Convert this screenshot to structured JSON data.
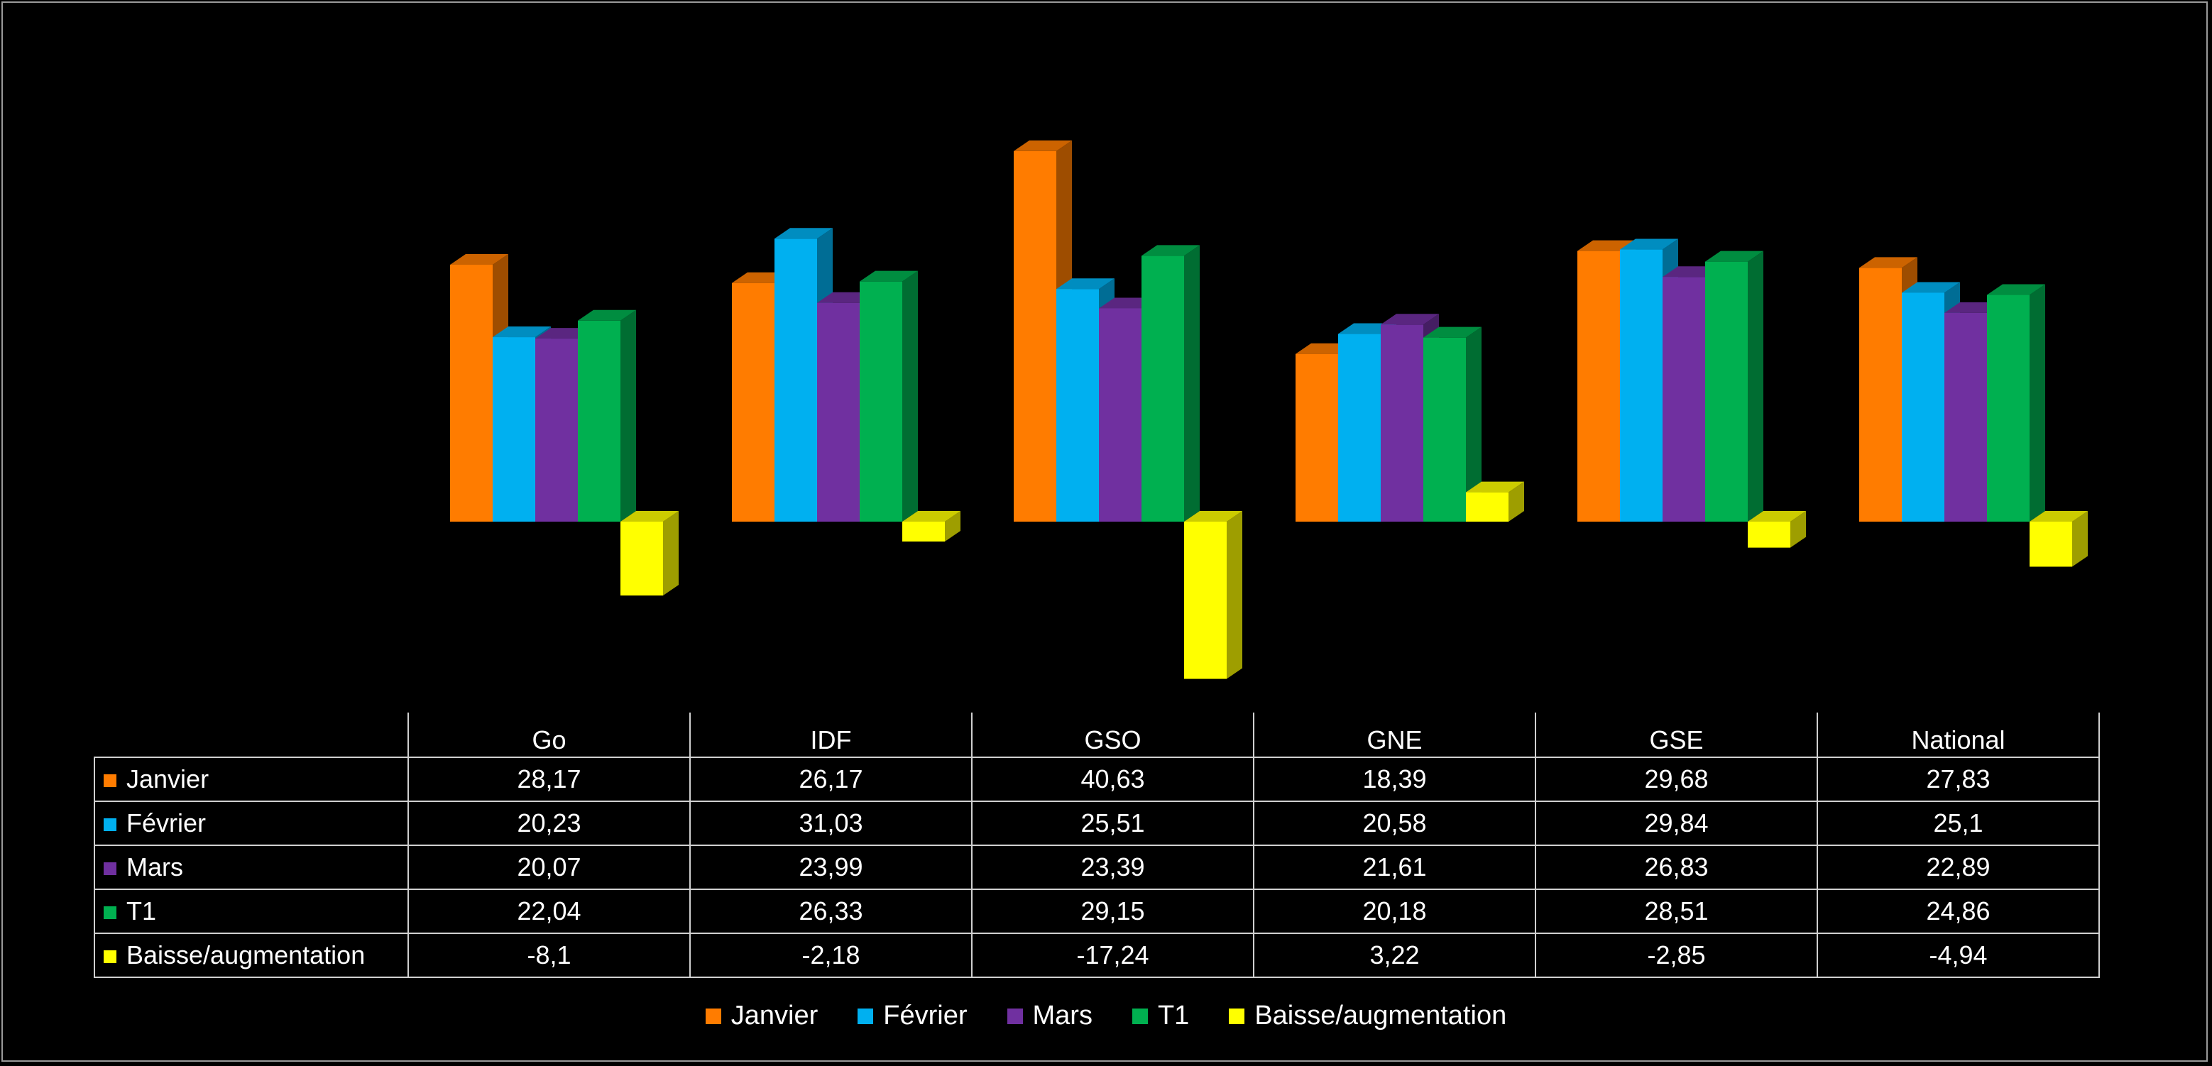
{
  "chart_data": {
    "type": "bar",
    "title": "",
    "xlabel": "",
    "ylabel": "",
    "categories": [
      "Go",
      "IDF",
      "GSO",
      "GNE",
      "GSE",
      "National"
    ],
    "series": [
      {
        "name": "Janvier",
        "color": "#FF7C00",
        "values": [
          28.17,
          26.17,
          40.63,
          18.39,
          29.68,
          27.83
        ],
        "labels": [
          "28,17",
          "26,17",
          "40,63",
          "18,39",
          "29,68",
          "27,83"
        ]
      },
      {
        "name": "Février",
        "color": "#00B0F0",
        "values": [
          20.23,
          31.03,
          25.51,
          20.58,
          29.84,
          25.1
        ],
        "labels": [
          "20,23",
          "31,03",
          "25,51",
          "20,58",
          "29,84",
          "25,1"
        ]
      },
      {
        "name": "Mars",
        "color": "#7030A0",
        "values": [
          20.07,
          23.99,
          23.39,
          21.61,
          26.83,
          22.89
        ],
        "labels": [
          "20,07",
          "23,99",
          "23,39",
          "21,61",
          "26,83",
          "22,89"
        ]
      },
      {
        "name": "T1",
        "color": "#00B050",
        "values": [
          22.04,
          26.33,
          29.15,
          20.18,
          28.51,
          24.86
        ],
        "labels": [
          "22,04",
          "26,33",
          "29,15",
          "20,18",
          "28,51",
          "24,86"
        ]
      },
      {
        "name": "Baisse/augmentation",
        "color": "#FFFF00",
        "values": [
          -8.1,
          -2.18,
          -17.24,
          3.22,
          -2.85,
          -4.94
        ],
        "labels": [
          "-8,1",
          "-2,18",
          "-17,24",
          "3,22",
          "-2,85",
          "-4,94"
        ]
      }
    ],
    "ylim": [
      -18,
      42
    ],
    "grid": false,
    "legend_position": "bottom",
    "data_table": true
  }
}
